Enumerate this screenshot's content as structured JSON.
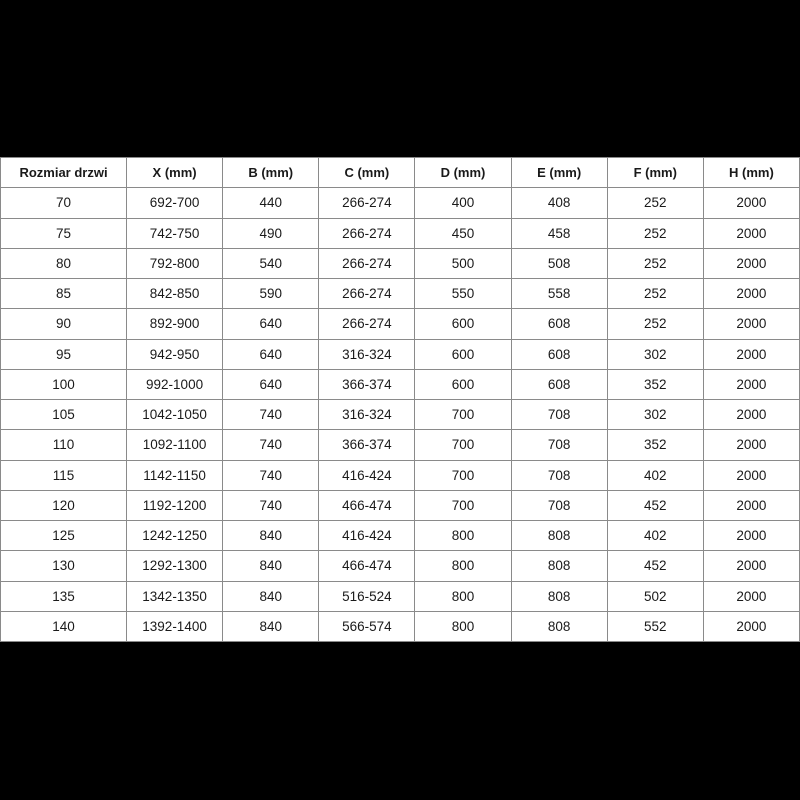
{
  "table": {
    "headers": [
      "Rozmiar drzwi",
      "X (mm)",
      "B (mm)",
      "C (mm)",
      "D (mm)",
      "E (mm)",
      "F (mm)",
      "H (mm)"
    ],
    "rows": [
      [
        "70",
        "692-700",
        "440",
        "266-274",
        "400",
        "408",
        "252",
        "2000"
      ],
      [
        "75",
        "742-750",
        "490",
        "266-274",
        "450",
        "458",
        "252",
        "2000"
      ],
      [
        "80",
        "792-800",
        "540",
        "266-274",
        "500",
        "508",
        "252",
        "2000"
      ],
      [
        "85",
        "842-850",
        "590",
        "266-274",
        "550",
        "558",
        "252",
        "2000"
      ],
      [
        "90",
        "892-900",
        "640",
        "266-274",
        "600",
        "608",
        "252",
        "2000"
      ],
      [
        "95",
        "942-950",
        "640",
        "316-324",
        "600",
        "608",
        "302",
        "2000"
      ],
      [
        "100",
        "992-1000",
        "640",
        "366-374",
        "600",
        "608",
        "352",
        "2000"
      ],
      [
        "105",
        "1042-1050",
        "740",
        "316-324",
        "700",
        "708",
        "302",
        "2000"
      ],
      [
        "110",
        "1092-1100",
        "740",
        "366-374",
        "700",
        "708",
        "352",
        "2000"
      ],
      [
        "115",
        "1142-1150",
        "740",
        "416-424",
        "700",
        "708",
        "402",
        "2000"
      ],
      [
        "120",
        "1192-1200",
        "740",
        "466-474",
        "700",
        "708",
        "452",
        "2000"
      ],
      [
        "125",
        "1242-1250",
        "840",
        "416-424",
        "800",
        "808",
        "402",
        "2000"
      ],
      [
        "130",
        "1292-1300",
        "840",
        "466-474",
        "800",
        "808",
        "452",
        "2000"
      ],
      [
        "135",
        "1342-1350",
        "840",
        "516-524",
        "800",
        "808",
        "502",
        "2000"
      ],
      [
        "140",
        "1392-1400",
        "840",
        "566-574",
        "800",
        "808",
        "552",
        "2000"
      ]
    ]
  }
}
